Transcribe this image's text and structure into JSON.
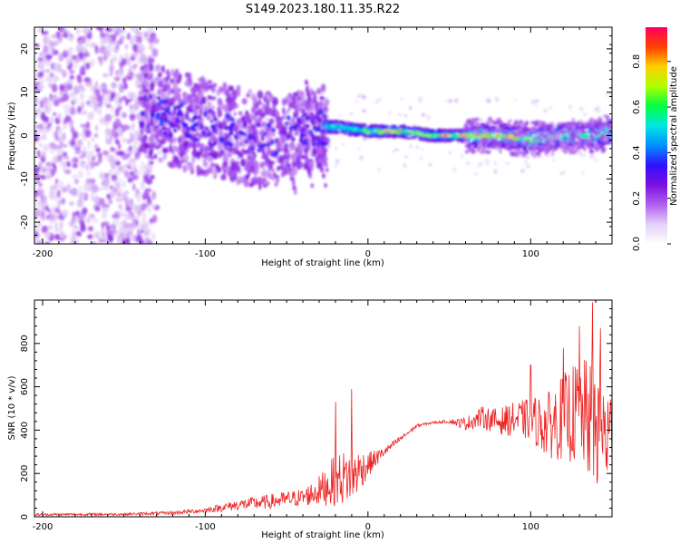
{
  "figure": {
    "title": "S149.2023.180.11.35.R22"
  },
  "chart_data": [
    {
      "type": "heatmap",
      "name": "spectrogram",
      "xlabel": "Height of straight line (km)",
      "ylabel": "Frequency (Hz)",
      "xlim": [
        -205,
        150
      ],
      "ylim": [
        -25,
        25
      ],
      "xticks": [
        -200,
        -100,
        0,
        100
      ],
      "yticks": [
        -20,
        -10,
        0,
        10,
        20
      ],
      "description_series": [
        {
          "name": "ridge_center_hz",
          "x": [
            -140,
            -120,
            -100,
            -80,
            -60,
            -40,
            -30,
            -20,
            0,
            20,
            40,
            60,
            80,
            100,
            120,
            140,
            150
          ],
          "values": [
            6,
            4,
            2,
            0,
            -1,
            1,
            2,
            2,
            1,
            1,
            0,
            0,
            0,
            -1,
            0,
            0,
            1
          ]
        }
      ],
      "colorbar": {
        "label": "Normalized spectral amplitude",
        "range": [
          0.0,
          0.95
        ],
        "ticks": [
          0.0,
          0.2,
          0.4,
          0.6,
          0.8
        ],
        "colors": [
          "#ffffff",
          "#e3d0f7",
          "#b060f0",
          "#7a10e0",
          "#3010ff",
          "#0090ff",
          "#00e8e0",
          "#00ff40",
          "#b0ff00",
          "#ffd000",
          "#ff4000",
          "#ff0060"
        ]
      }
    },
    {
      "type": "line",
      "name": "snr",
      "xlabel": "Height of straight line (km)",
      "ylabel": "SNR (10 * v/v)",
      "xlim": [
        -205,
        150
      ],
      "ylim": [
        0,
        1000
      ],
      "xticks": [
        -200,
        -100,
        0,
        100
      ],
      "yticks": [
        0,
        200,
        400,
        600,
        800
      ],
      "color": "#ee2222",
      "envelope": {
        "x": [
          -205,
          -150,
          -120,
          -100,
          -80,
          -60,
          -40,
          -30,
          -20,
          -10,
          0,
          10,
          20,
          30,
          40,
          50,
          60,
          70,
          80,
          90,
          100,
          110,
          120,
          130,
          140,
          150
        ],
        "mean": [
          10,
          12,
          18,
          30,
          55,
          70,
          90,
          120,
          170,
          190,
          240,
          300,
          360,
          420,
          435,
          440,
          430,
          460,
          440,
          450,
          450,
          420,
          460,
          480,
          420,
          350
        ],
        "amp": [
          6,
          6,
          8,
          12,
          25,
          35,
          40,
          70,
          120,
          130,
          60,
          20,
          15,
          8,
          5,
          8,
          30,
          50,
          60,
          80,
          100,
          150,
          200,
          250,
          300,
          250
        ]
      },
      "spikes": [
        {
          "x": -20,
          "y": 530
        },
        {
          "x": -10,
          "y": 590
        },
        {
          "x": 100,
          "y": 700
        },
        {
          "x": 120,
          "y": 780
        },
        {
          "x": 130,
          "y": 880
        },
        {
          "x": 138,
          "y": 990
        },
        {
          "x": 143,
          "y": 870
        }
      ]
    }
  ]
}
